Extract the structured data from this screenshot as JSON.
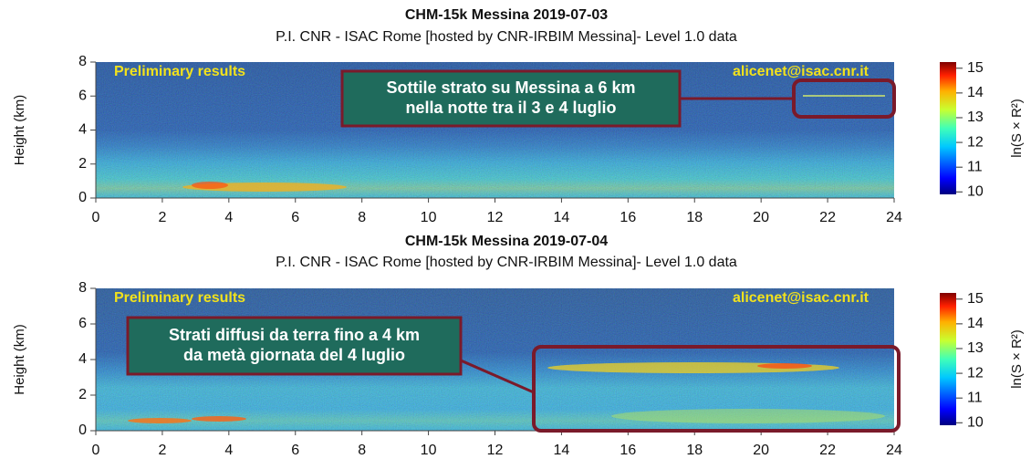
{
  "chart_data": [
    {
      "type": "heatmap",
      "title": "CHM-15k Messina 2019-07-03",
      "subtitle": "P.I. CNR - ISAC Rome [hosted by CNR-IRBIM Messina]- Level 1.0 data",
      "y_label": "Height (km)",
      "xlim": [
        0,
        24
      ],
      "xticks": [
        0,
        2,
        4,
        6,
        8,
        10,
        12,
        14,
        16,
        18,
        20,
        22,
        24
      ],
      "ylim": [
        0,
        8
      ],
      "yticks": [
        0,
        2,
        4,
        6,
        8
      ],
      "colorbar": {
        "label": "ln(S × R²)",
        "lim": [
          9.9,
          15.25
        ],
        "ticks": [
          10,
          11,
          12,
          13,
          14,
          15
        ]
      },
      "annotations": {
        "left": "Preliminary results",
        "right": "alicenet@isac.cnr.it",
        "callout": [
          "Sottile strato su Messina a 6 km",
          "nella notte tra il 3 e 4 luglio"
        ]
      }
    },
    {
      "type": "heatmap",
      "title": "CHM-15k Messina 2019-07-04",
      "subtitle": "P.I. CNR - ISAC Rome [hosted by CNR-IRBIM Messina]- Level 1.0 data",
      "y_label": "Height (km)",
      "xlim": [
        0,
        24
      ],
      "xticks": [
        0,
        2,
        4,
        6,
        8,
        10,
        12,
        14,
        16,
        18,
        20,
        22,
        24
      ],
      "ylim": [
        0,
        8
      ],
      "yticks": [
        0,
        2,
        4,
        6,
        8
      ],
      "colorbar": {
        "label": "ln(S × R²)",
        "lim": [
          9.9,
          15.25
        ],
        "ticks": [
          10,
          11,
          12,
          13,
          14,
          15
        ]
      },
      "annotations": {
        "left": "Preliminary results",
        "right": "alicenet@isac.cnr.it",
        "callout": [
          "Strati diffusi da terra fino a 4 km",
          "da metà giornata del 4 luglio"
        ]
      }
    }
  ]
}
